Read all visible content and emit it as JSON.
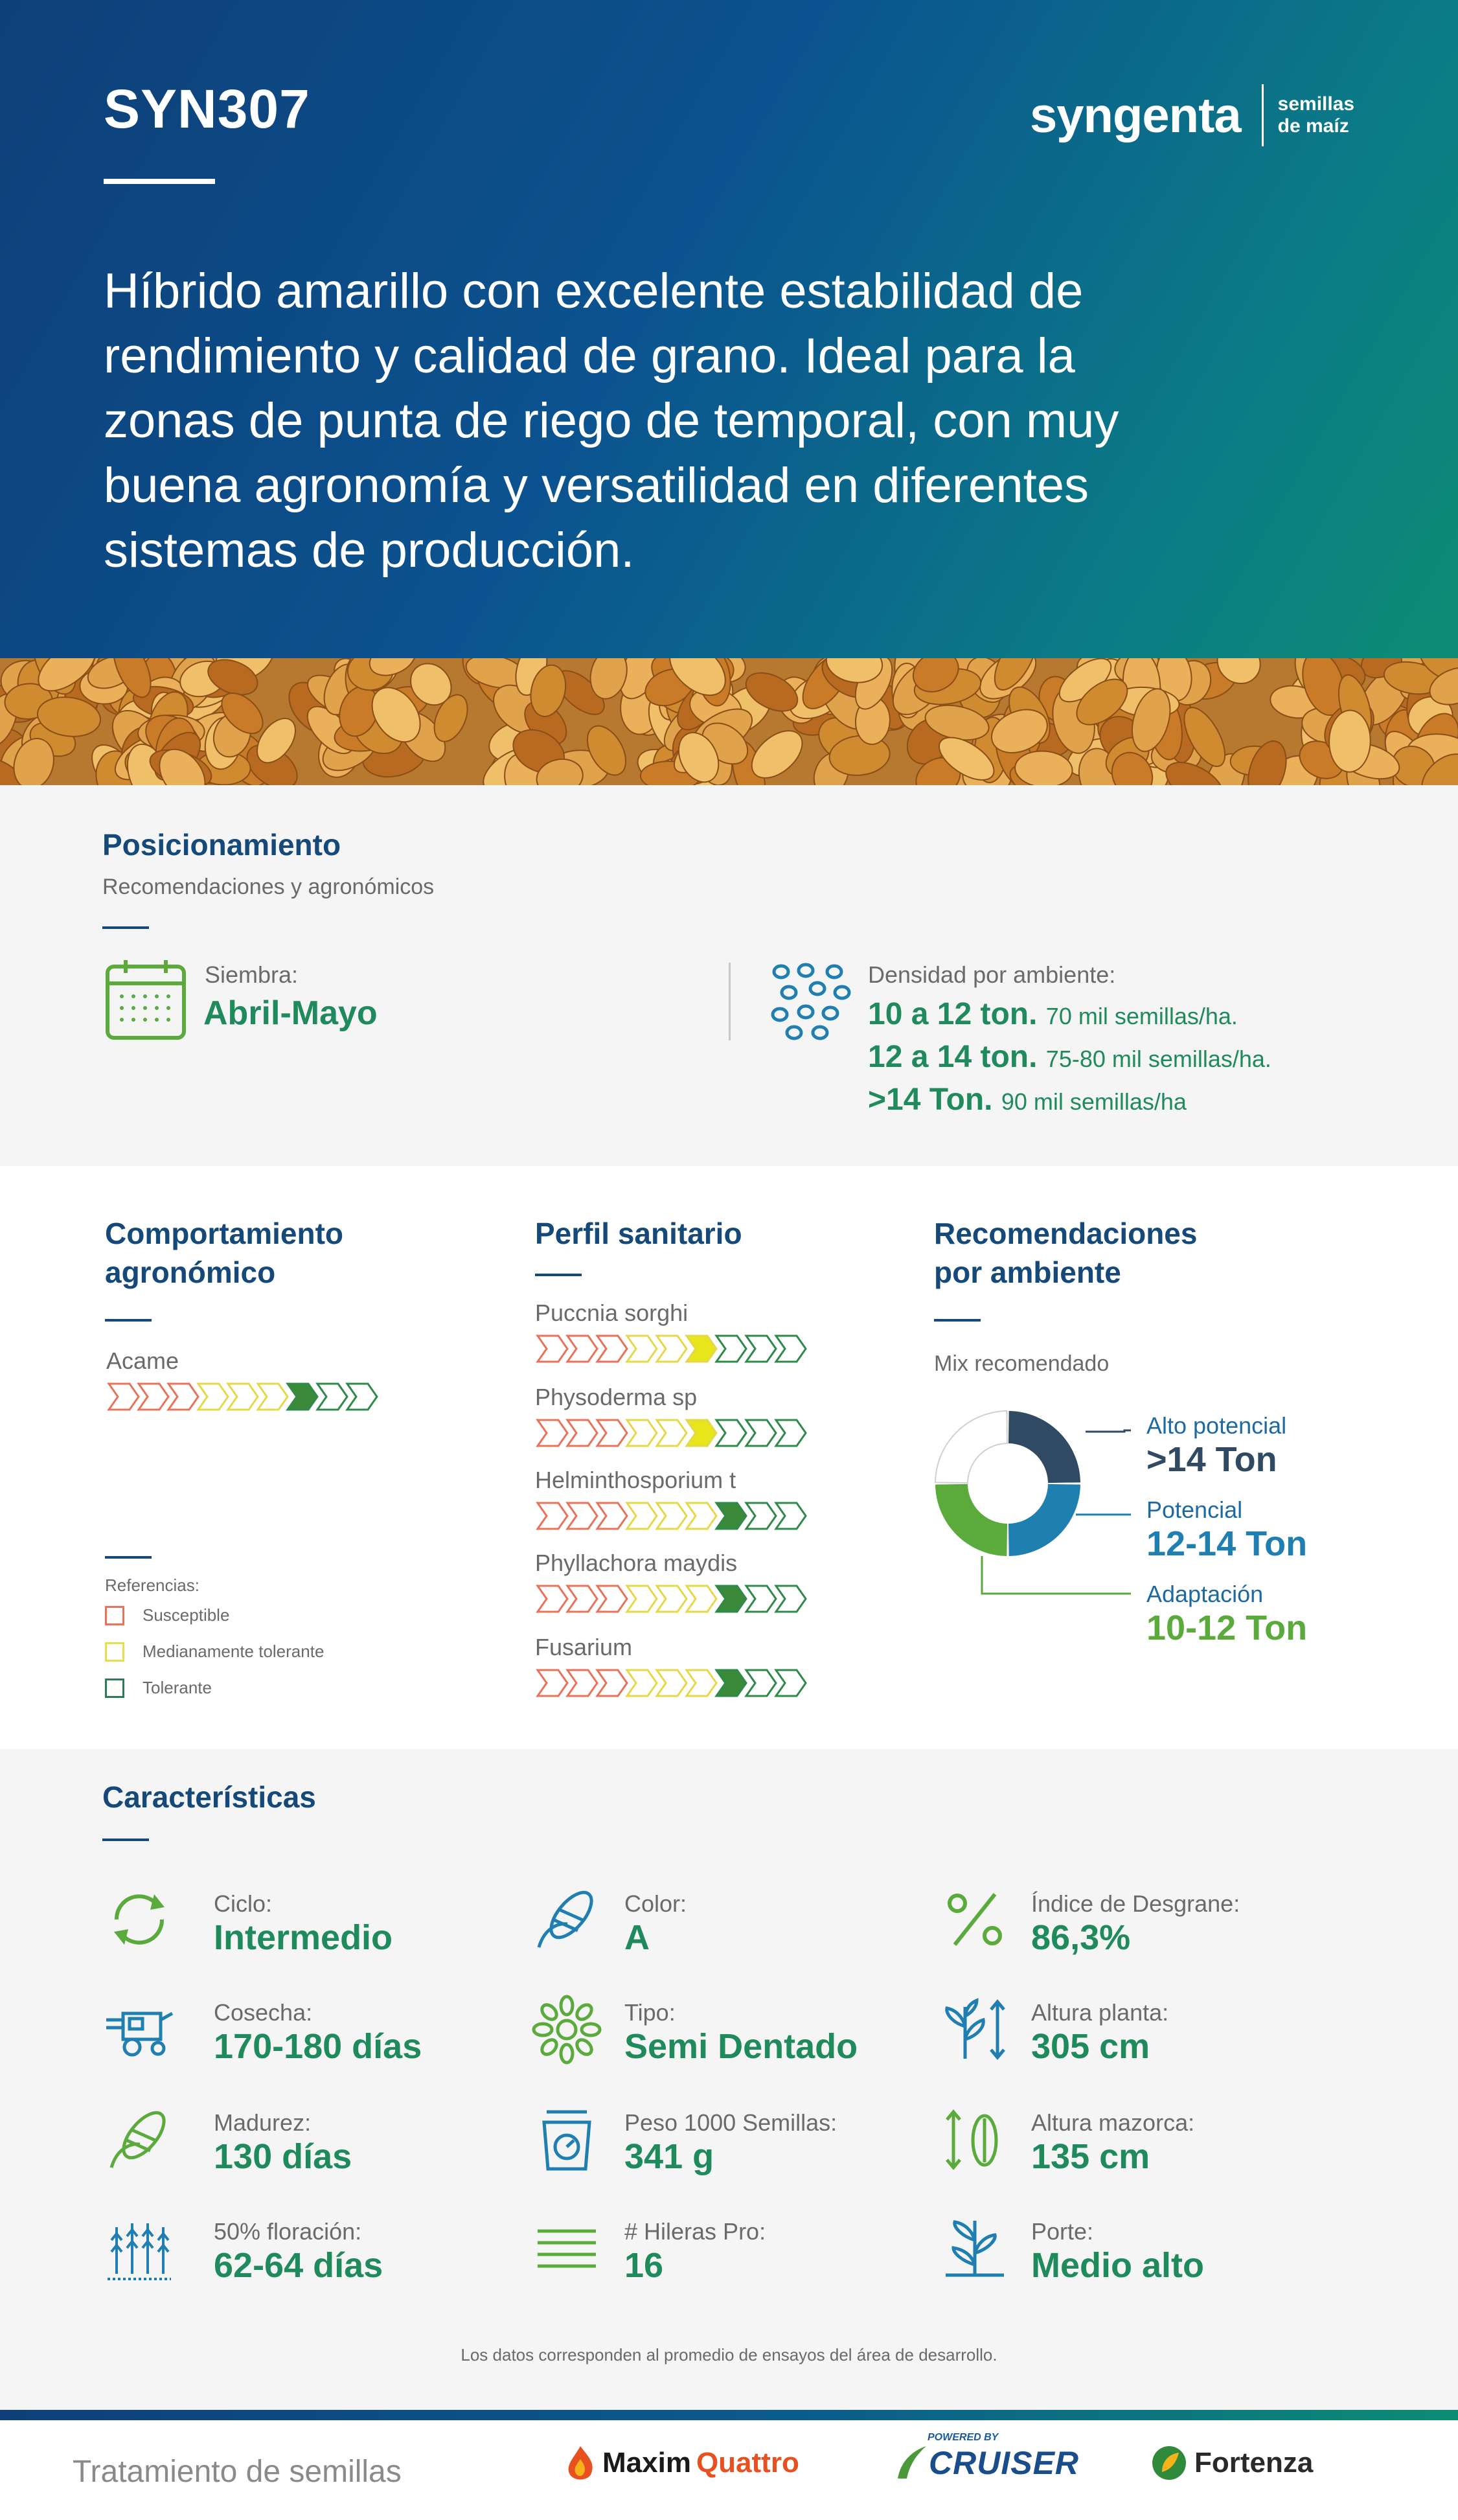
{
  "header": {
    "product": "SYN307",
    "logo_text": "syngenta",
    "logo_sub_1": "semillas",
    "logo_sub_2": "de maíz",
    "intro_lines": [
      "Híbrido amarillo con excelente estabilidad de",
      "rendimiento y calidad de grano. Ideal para la",
      "zonas de punta de riego de temporal, con muy",
      "buena agronomía y versatilidad en diferentes",
      "sistemas de producción."
    ]
  },
  "posicionamiento": {
    "title": "Posicionamiento",
    "subtitle": "Recomendaciones y agronómicos",
    "siembra_label": "Siembra:",
    "siembra_value": "Abril-Mayo",
    "densidad_label": "Densidad por ambiente:",
    "densidad": [
      {
        "range": "10 a 12 ton.",
        "detail": "70 mil semillas/ha."
      },
      {
        "range": "12 a 14 ton.",
        "detail": "75-80 mil semillas/ha."
      },
      {
        "range": ">14 Ton.",
        "detail": "90 mil semillas/ha"
      }
    ]
  },
  "comportamiento": {
    "title_1": "Comportamiento",
    "title_2": "agronómico",
    "items": [
      {
        "label": "Acame",
        "level": 6
      }
    ]
  },
  "sanitario": {
    "title": "Perfil sanitario",
    "items": [
      {
        "label": "Puccnia sorghi",
        "level": 5,
        "scale": "yellow"
      },
      {
        "label": "Physoderma sp",
        "level": 5,
        "scale": "yellow"
      },
      {
        "label": "Helminthosporium t",
        "level": 6,
        "scale": "green"
      },
      {
        "label": "Phyllachora maydis",
        "level": 6,
        "scale": "green"
      },
      {
        "label": "Fusarium",
        "level": 6,
        "scale": "green"
      }
    ]
  },
  "referencias": {
    "title": "Referencias:",
    "items": [
      "Susceptible",
      "Medianamente tolerante",
      "Tolerante"
    ],
    "colors": [
      "#e8735a",
      "#e5e04a",
      "#2f7a5a"
    ]
  },
  "recomendaciones": {
    "title_1": "Recomendaciones",
    "title_2": "por ambiente",
    "subtitle": "Mix recomendado",
    "items": [
      {
        "label": "Alto potencial",
        "value": ">14 Ton",
        "share": 0.25,
        "color": "#2f4a62"
      },
      {
        "label": "Potencial",
        "value": "12-14 Ton",
        "share": 0.25,
        "color": "#1e7fb0"
      },
      {
        "label": "Adaptación",
        "value": "10-12 Ton",
        "share": 0.25,
        "color": "#5aaa3c"
      }
    ]
  },
  "caracteristicas": {
    "title": "Características",
    "items": [
      {
        "label": "Ciclo:",
        "value": "Intermedio",
        "icon": "cycle-icon"
      },
      {
        "label": "Color:",
        "value": "A",
        "icon": "corn-color-icon"
      },
      {
        "label": "Índice de Desgrane:",
        "value": "86,3%",
        "icon": "percent-icon"
      },
      {
        "label": "Cosecha:",
        "value": "170-180 días",
        "icon": "harvester-icon"
      },
      {
        "label": "Tipo:",
        "value": "Semi Dentado",
        "icon": "kernel-type-icon"
      },
      {
        "label": "Altura planta:",
        "value": "305 cm",
        "icon": "plant-height-icon"
      },
      {
        "label": "Madurez:",
        "value": "130 días",
        "icon": "corn-cob-icon"
      },
      {
        "label": "Peso 1000 Semillas:",
        "value": "341 g",
        "icon": "scale-icon"
      },
      {
        "label": "Altura mazorca:",
        "value": "135 cm",
        "icon": "ear-height-icon"
      },
      {
        "label": "50% floración:",
        "value": "62-64 días",
        "icon": "tassel-icon"
      },
      {
        "label": "# Hileras Pro:",
        "value": "16",
        "icon": "rows-icon"
      },
      {
        "label": "Porte:",
        "value": "Medio alto",
        "icon": "plant-habit-icon"
      }
    ],
    "note": "Los datos corresponden al promedio de ensayos del área de desarrollo."
  },
  "footer": {
    "label": "Tratamiento de semillas",
    "brands": [
      "Maxim",
      "Quattro",
      "POWERED BY",
      "CRUISER",
      "Fortenza"
    ]
  }
}
